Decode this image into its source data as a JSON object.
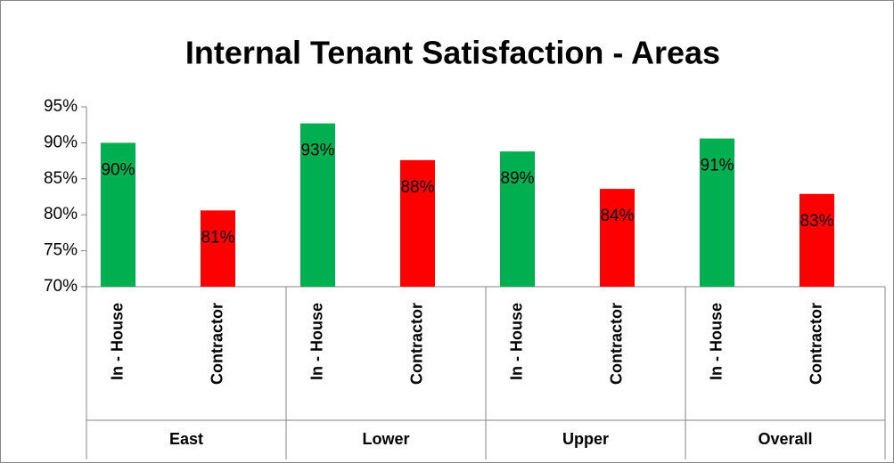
{
  "chart_data": {
    "type": "bar",
    "title": "Internal Tenant Satisfaction - Areas",
    "categories": [
      "In - House",
      "Contractor",
      "In - House",
      "Contractor",
      "In - House",
      "Contractor",
      "In - House",
      "Contractor"
    ],
    "groups": [
      "East",
      "Lower",
      "Upper",
      "Overall"
    ],
    "values": [
      90.0,
      80.6,
      92.7,
      87.6,
      88.8,
      83.6,
      90.6,
      82.9
    ],
    "value_labels": [
      "90%",
      "81%",
      "93%",
      "88%",
      "89%",
      "84%",
      "91%",
      "83%"
    ],
    "colors": [
      "#00b050",
      "#ff0000",
      "#00b050",
      "#ff0000",
      "#00b050",
      "#ff0000",
      "#00b050",
      "#ff0000"
    ],
    "ylim": [
      70,
      95
    ],
    "yticks": [
      {
        "value": 70,
        "label": "70%"
      },
      {
        "value": 75,
        "label": "75%"
      },
      {
        "value": 80,
        "label": "80%"
      },
      {
        "value": 85,
        "label": "85%"
      },
      {
        "value": 90,
        "label": "90%"
      },
      {
        "value": 95,
        "label": "95%"
      }
    ],
    "grid": false
  }
}
